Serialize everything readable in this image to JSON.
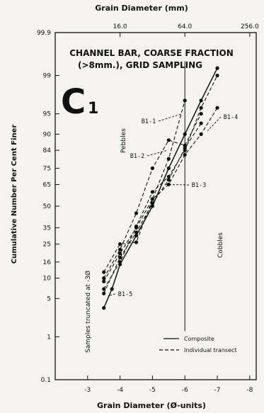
{
  "chart_data": {
    "type": "line",
    "title": "CHANNEL BAR, COARSE FRACTION",
    "subtitle": "(>8mm.), GRID SAMPLING",
    "panel_label": "C",
    "panel_subscript": "1",
    "xlabel": "Grain Diameter (Ø-units)",
    "top_xlabel": "Grain Diameter (mm)",
    "ylabel": "Cumulative Number Per Cent Finer",
    "x_ticks": [
      "-3",
      "-4",
      "-5",
      "-6",
      "-7",
      "-8"
    ],
    "x_tick_values": [
      -3,
      -4,
      -5,
      -6,
      -7,
      -8
    ],
    "top_ticks": [
      "16.0",
      "64.0",
      "256.0"
    ],
    "top_tick_phi": [
      -4,
      -6,
      -8
    ],
    "y_ticks": [
      "0.1",
      "1",
      "5",
      "10",
      "16",
      "25",
      "35",
      "50",
      "65",
      "75",
      "84",
      "90",
      "95",
      "99",
      "99.9"
    ],
    "y_tick_values": [
      0.1,
      1,
      5,
      10,
      16,
      25,
      35,
      50,
      65,
      75,
      84,
      90,
      95,
      99,
      99.9
    ],
    "xlim": [
      -2,
      -8.2
    ],
    "ylim": [
      0.1,
      99.9
    ],
    "y_scale": "probability",
    "grid": false,
    "cutoff_phi": -6,
    "region_labels": {
      "pebbles": "Pebbles",
      "cobbles": "Cobbles",
      "truncated": "Samples truncated at -3Ø"
    },
    "legend": {
      "composite": "Composite",
      "individual": "Individual transect"
    },
    "series": [
      {
        "style": "solid",
        "points": [
          [
            -3.5,
            3.5
          ],
          [
            -3.75,
            7
          ],
          [
            -4,
            15
          ],
          [
            -4.5,
            30
          ],
          [
            -5,
            50
          ],
          [
            -5.5,
            75
          ],
          [
            -6,
            90
          ],
          [
            -6.5,
            97
          ],
          [
            -7,
            99.3
          ]
        ]
      },
      {
        "name": "B1-1",
        "style": "dashed",
        "points": [
          [
            -3.5,
            9
          ],
          [
            -4,
            20
          ],
          [
            -4.5,
            35
          ],
          [
            -5,
            55
          ],
          [
            -5.5,
            80
          ],
          [
            -6,
            97
          ]
        ]
      },
      {
        "name": "B1-2",
        "style": "dashed",
        "points": [
          [
            -3.5,
            7
          ],
          [
            -4,
            16
          ],
          [
            -4.5,
            36
          ],
          [
            -5,
            60
          ],
          [
            -5.5,
            70
          ],
          [
            -6,
            84
          ],
          [
            -6.5,
            96
          ],
          [
            -7,
            99
          ]
        ]
      },
      {
        "name": "B1-3",
        "style": "dashed",
        "points": [
          [
            -3.5,
            10
          ],
          [
            -4,
            22
          ],
          [
            -4.5,
            45
          ],
          [
            -5,
            75
          ],
          [
            -5.5,
            88
          ],
          [
            -6,
            86
          ],
          [
            -6.5,
            95
          ]
        ]
      },
      {
        "name": "B1-4",
        "style": "dashed",
        "points": [
          [
            -3.5,
            12
          ],
          [
            -4,
            25
          ],
          [
            -4.5,
            26
          ],
          [
            -5,
            55
          ],
          [
            -5.5,
            65
          ],
          [
            -6,
            82
          ],
          [
            -6.5,
            90
          ],
          [
            -7,
            96
          ]
        ]
      },
      {
        "name": "B1-5",
        "style": "dashed",
        "points": [
          [
            -3.5,
            6
          ],
          [
            -4,
            18
          ],
          [
            -4.5,
            32
          ],
          [
            -5,
            52
          ],
          [
            -5.5,
            68
          ],
          [
            -6,
            85
          ],
          [
            -6.5,
            93
          ]
        ]
      }
    ],
    "series_labels": [
      "B1-1",
      "B1-2",
      "B1-3",
      "B1-4",
      "B1-5"
    ]
  }
}
